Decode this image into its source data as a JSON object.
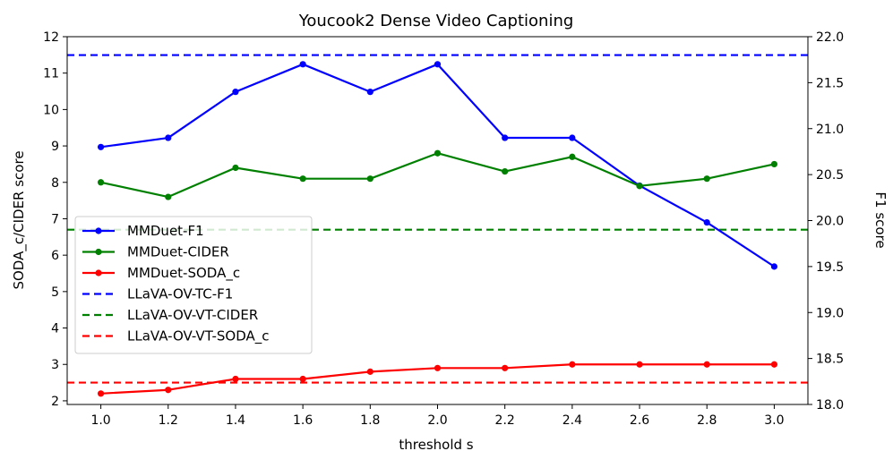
{
  "chart_data": {
    "type": "line",
    "title": "Youcook2 Dense Video Captioning",
    "xlabel": "threshold s",
    "ylabel_left": "SODA_c/CIDER score",
    "ylabel_right": "F1 score",
    "x": [
      1.0,
      1.2,
      1.4,
      1.6,
      1.8,
      2.0,
      2.2,
      2.4,
      2.6,
      2.8,
      3.0
    ],
    "x_tick_labels": [
      "1.0",
      "1.2",
      "1.4",
      "1.6",
      "1.8",
      "2.0",
      "2.2",
      "2.4",
      "2.6",
      "2.8",
      "3.0"
    ],
    "xlim": [
      0.9,
      3.1
    ],
    "ylim_left": [
      1.9,
      12.0
    ],
    "ylim_right": [
      18.0,
      22.0
    ],
    "y_left_ticks": [
      2,
      3,
      4,
      5,
      6,
      7,
      8,
      9,
      10,
      11,
      12
    ],
    "y_left_tick_labels": [
      "2",
      "3",
      "4",
      "5",
      "6",
      "7",
      "8",
      "9",
      "10",
      "11",
      "12"
    ],
    "y_right_ticks": [
      18.0,
      18.5,
      19.0,
      19.5,
      20.0,
      20.5,
      21.0,
      21.5,
      22.0
    ],
    "y_right_tick_labels": [
      "18.0",
      "18.5",
      "19.0",
      "19.5",
      "20.0",
      "20.5",
      "21.0",
      "21.5",
      "22.0"
    ],
    "legend_position": "center-left",
    "grid": false,
    "series": [
      {
        "name": "MMDuet-F1",
        "axis": "right",
        "color": "#0000ff",
        "style": "solid",
        "marker": true,
        "values": [
          20.8,
          20.9,
          21.4,
          21.7,
          21.4,
          21.7,
          20.9,
          20.9,
          20.38,
          19.98,
          19.5
        ]
      },
      {
        "name": "MMDuet-CIDER",
        "axis": "left",
        "color": "#008000",
        "style": "solid",
        "marker": true,
        "values": [
          8.0,
          7.6,
          8.4,
          8.1,
          8.1,
          8.8,
          8.3,
          8.7,
          7.9,
          8.1,
          8.5
        ]
      },
      {
        "name": "MMDuet-SODA_c",
        "axis": "left",
        "color": "#ff0000",
        "style": "solid",
        "marker": true,
        "values": [
          2.2,
          2.3,
          2.6,
          2.6,
          2.8,
          2.9,
          2.9,
          3.0,
          3.0,
          3.0,
          3.0
        ]
      },
      {
        "name": "LLaVA-OV-TC-F1",
        "axis": "right",
        "color": "#0000ff",
        "style": "dashed",
        "marker": false,
        "value": 21.8
      },
      {
        "name": "LLaVA-OV-VT-CIDER",
        "axis": "left",
        "color": "#008000",
        "style": "dashed",
        "marker": false,
        "value": 6.7
      },
      {
        "name": "LLaVA-OV-VT-SODA_c",
        "axis": "left",
        "color": "#ff0000",
        "style": "dashed",
        "marker": false,
        "value": 2.5
      }
    ]
  }
}
